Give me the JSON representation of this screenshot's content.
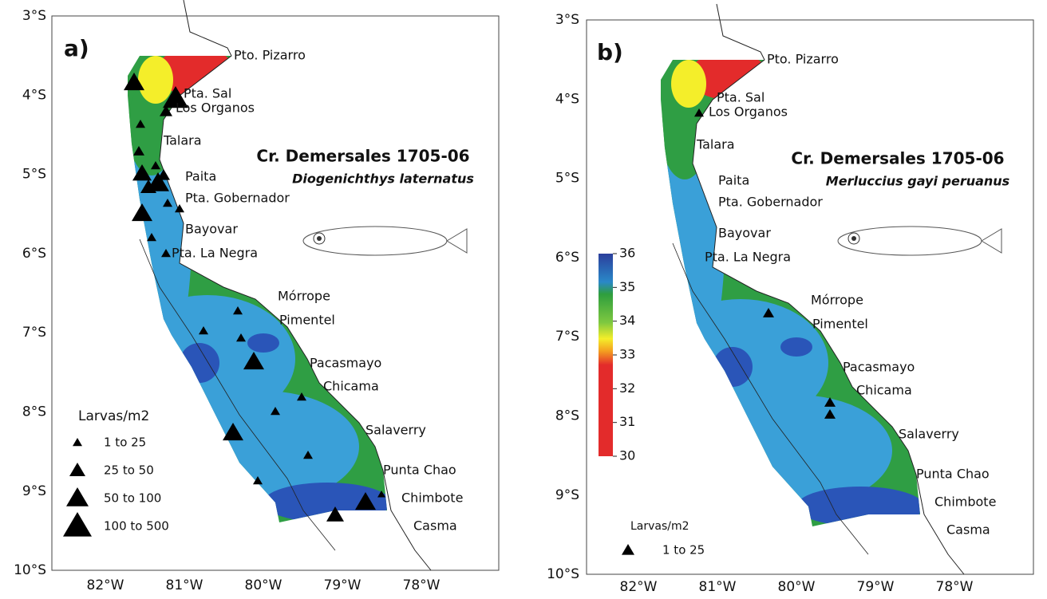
{
  "panels": [
    {
      "letter": "a)",
      "title": "Cr. Demersales 1705-06",
      "species": "Diogenichthys laternatus",
      "lat_labels": [
        "3°S",
        "4°S",
        "5°S",
        "6°S",
        "7°S",
        "8°S",
        "9°S",
        "10°S"
      ],
      "lon_labels": [
        "82°W",
        "81°W",
        "80°W",
        "79°W",
        "78°W"
      ],
      "places": [
        "Pto. Pizarro",
        "Pta. Sal",
        "Los Organos",
        "Talara",
        "Paita",
        "Pta. Gobernador",
        "Bayovar",
        "Pta. La Negra",
        "Mórrope",
        "Pimentel",
        "Pacasmayo",
        "Chicama",
        "Salaverry",
        "Punta Chao",
        "Chimbote",
        "Casma"
      ],
      "legend": {
        "title": "Larvas/m2",
        "items": [
          "1 to 25",
          "25 to 50",
          "50 to 100",
          "100 to 500"
        ]
      }
    },
    {
      "letter": "b)",
      "title": "Cr. Demersales 1705-06",
      "species": "Merluccius gayi peruanus",
      "lat_labels": [
        "3°S",
        "4°S",
        "5°S",
        "6°S",
        "7°S",
        "8°S",
        "9°S",
        "10°S"
      ],
      "lon_labels": [
        "82°W",
        "81°W",
        "80°W",
        "79°W",
        "78°W"
      ],
      "places": [
        "Pto. Pizarro",
        "Pta. Sal",
        "Los Organos",
        "Talara",
        "Paita",
        "Pta. Gobernador",
        "Bayovar",
        "Pta. La Negra",
        "Mórrope",
        "Pimentel",
        "Pacasmayo",
        "Chicama",
        "Salaverry",
        "Punta Chao",
        "Chimbote",
        "Casma"
      ],
      "legend": {
        "title": "Larvas/m2",
        "items": [
          "1 to 25"
        ]
      },
      "colorbar": {
        "ticks": [
          30,
          31,
          32,
          33,
          34,
          35,
          36
        ]
      }
    }
  ]
}
